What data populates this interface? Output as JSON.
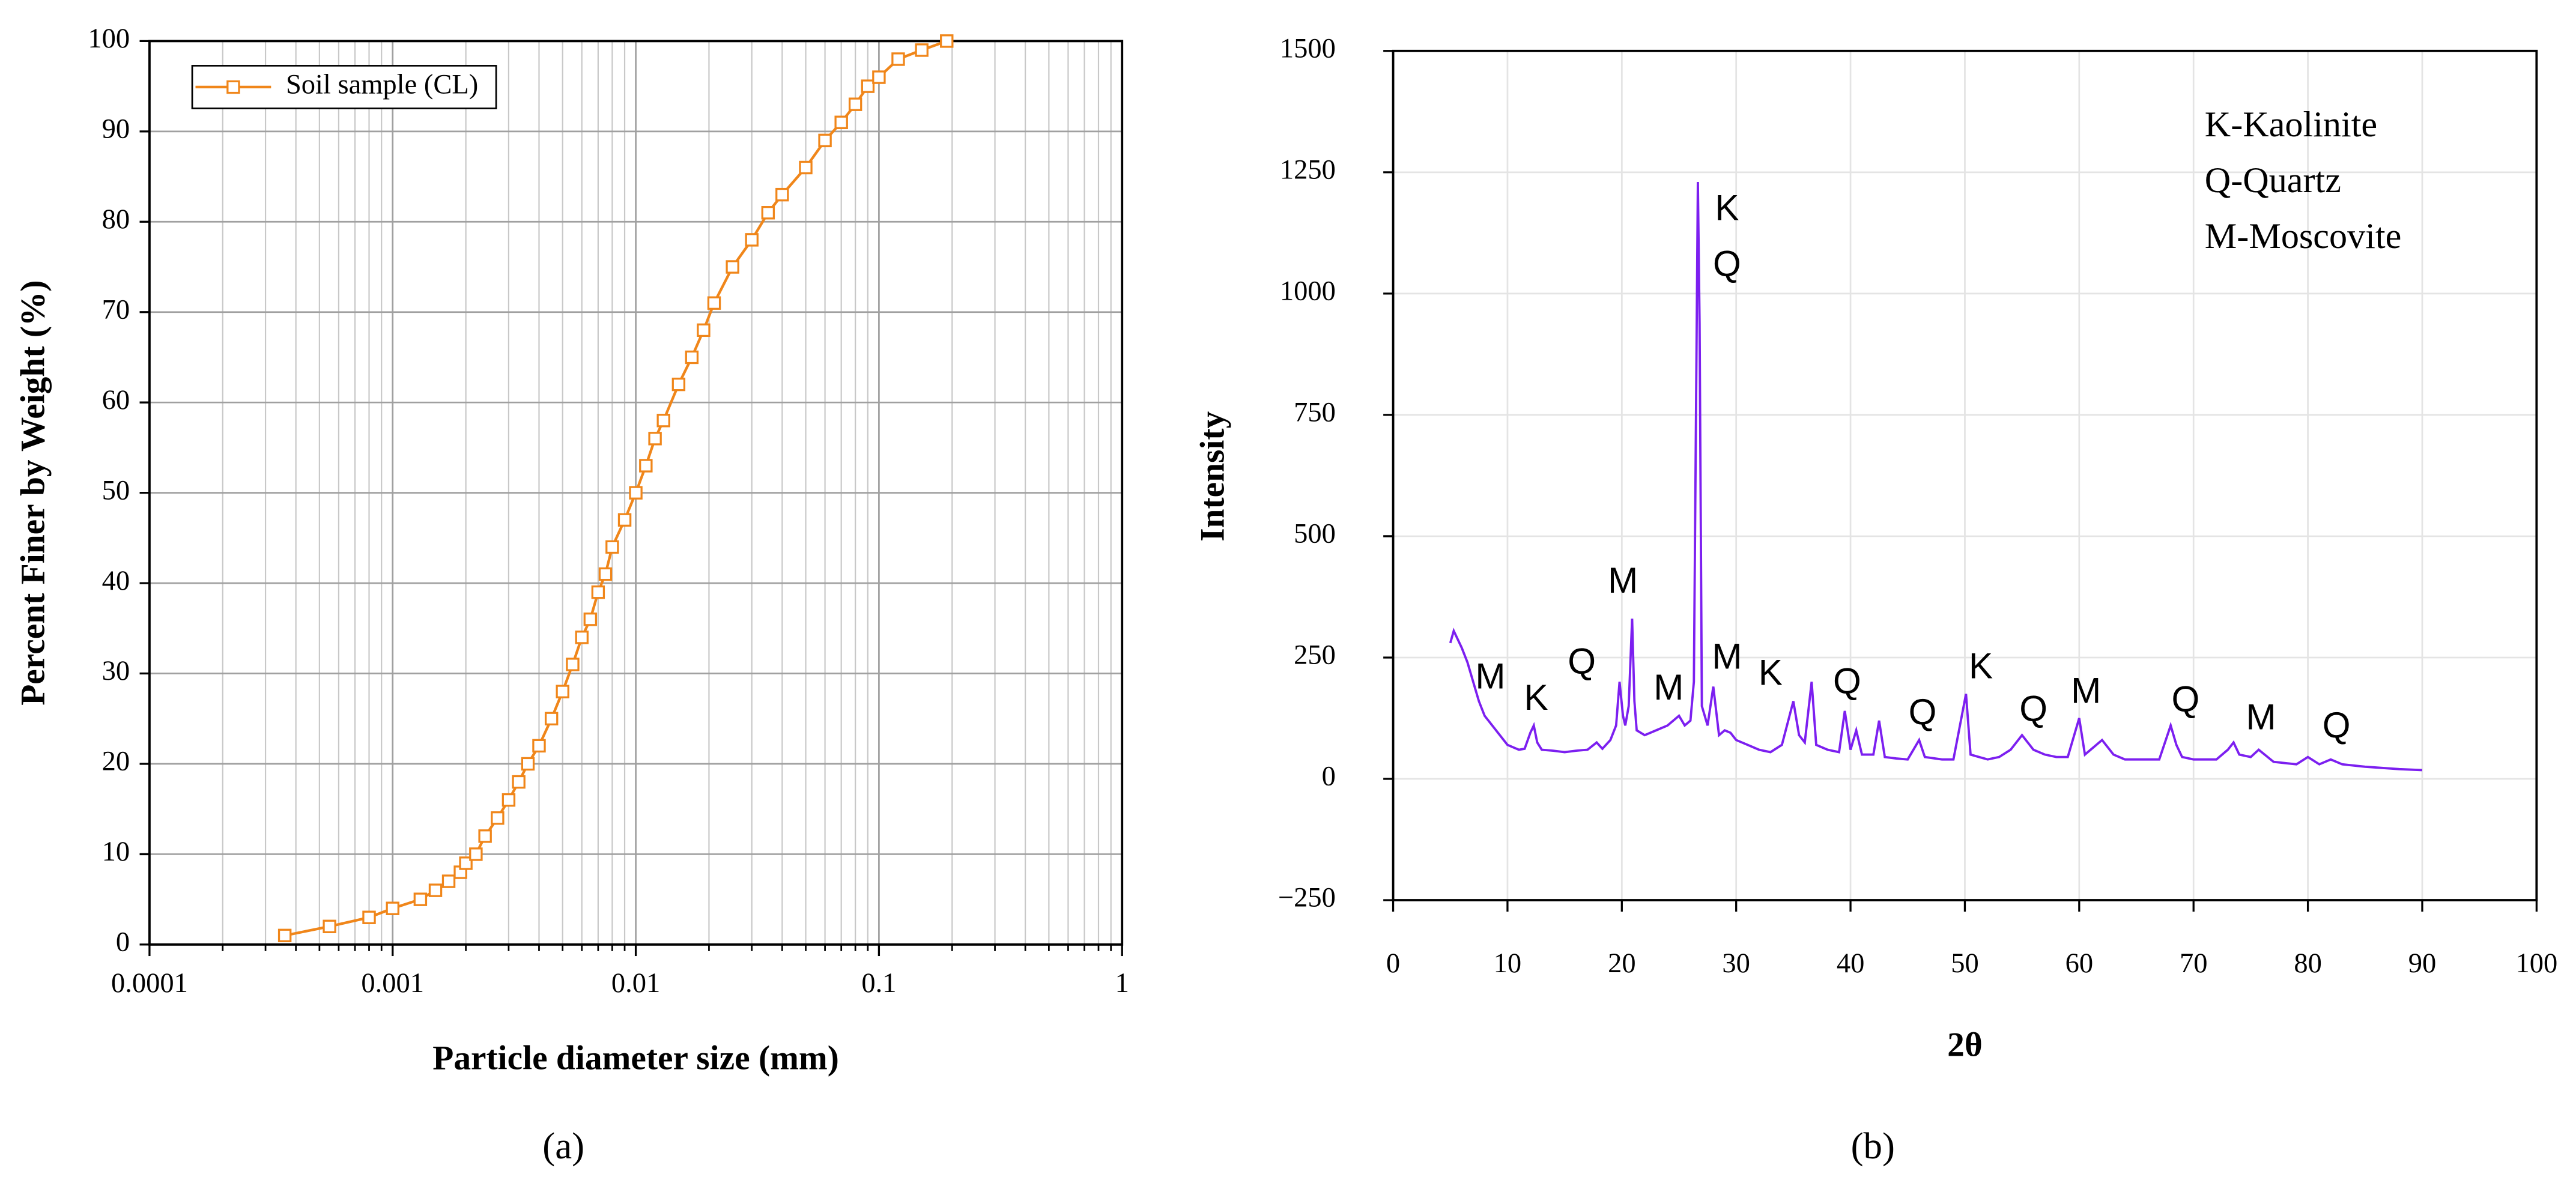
{
  "chart_data": [
    {
      "type": "line",
      "label": "(a)",
      "xscale": "log",
      "xlabel": "Particle diameter size (mm)",
      "ylabel": "Percent Finer by Weight (%)",
      "xlim": [
        0.0001,
        1
      ],
      "xticks": [
        0.0001,
        0.001,
        0.01,
        0.1,
        1
      ],
      "ylim": [
        0,
        100
      ],
      "yticks": [
        0,
        10,
        20,
        30,
        40,
        50,
        60,
        70,
        80,
        90,
        100
      ],
      "grid": true,
      "legend": "upper left",
      "x": [
        0.00036,
        0.00055,
        0.0008,
        0.001,
        0.0013,
        0.0015,
        0.0017,
        0.0019,
        0.002,
        0.0022,
        0.0024,
        0.0027,
        0.003,
        0.0033,
        0.0036,
        0.004,
        0.0045,
        0.005,
        0.0055,
        0.006,
        0.0065,
        0.007,
        0.0075,
        0.008,
        0.009,
        0.01,
        0.011,
        0.012,
        0.013,
        0.015,
        0.017,
        0.019,
        0.021,
        0.025,
        0.03,
        0.035,
        0.04,
        0.05,
        0.06,
        0.07,
        0.08,
        0.09,
        0.1,
        0.12,
        0.15,
        0.19
      ],
      "series": [
        {
          "name": "Soil sample (CL)",
          "color": "#f0861a",
          "marker": "square",
          "values": [
            1,
            2,
            3,
            4,
            5,
            6,
            7,
            8,
            9,
            10,
            12,
            14,
            16,
            18,
            20,
            22,
            25,
            28,
            31,
            34,
            36,
            39,
            41,
            44,
            47,
            50,
            53,
            56,
            58,
            62,
            65,
            68,
            71,
            75,
            78,
            81,
            83,
            86,
            89,
            91,
            93,
            95,
            96,
            98,
            99,
            100
          ]
        }
      ]
    },
    {
      "type": "line",
      "label": "(b)",
      "xlabel": "2θ",
      "ylabel": "Intensity",
      "xlim": [
        0,
        100
      ],
      "xticks": [
        0,
        10,
        20,
        30,
        40,
        50,
        60,
        70,
        80,
        90,
        100
      ],
      "ylim": [
        -250,
        1500
      ],
      "yticks": [
        {
          "value": -250,
          "label": "−250"
        },
        0,
        250,
        500,
        750,
        1000,
        1250,
        1500
      ],
      "grid": true,
      "key": [
        "K-Kaolinite",
        "Q-Quartz",
        "M-Moscovite"
      ],
      "x": [
        5,
        5.3,
        5.6,
        6,
        6.5,
        7,
        7.5,
        8,
        8.5,
        9,
        9.5,
        10,
        10.5,
        11,
        11.5,
        12,
        12.3,
        12.6,
        13,
        14,
        15,
        16,
        17,
        17.8,
        18.3,
        19,
        19.5,
        19.8,
        20.1,
        20.3,
        20.6,
        20.9,
        21.1,
        21.3,
        22,
        23,
        24,
        25,
        25.5,
        26,
        26.3,
        26.65,
        26.8,
        27,
        27.5,
        28,
        28.5,
        29,
        29.5,
        30,
        31,
        32,
        33,
        34,
        35,
        35.5,
        36,
        36.6,
        37,
        38,
        39,
        39.5,
        40,
        40.5,
        41,
        42,
        42.5,
        43,
        44,
        45,
        46,
        46.5,
        48,
        49,
        50.1,
        50.5,
        52,
        53,
        54,
        55,
        56,
        57,
        58,
        59,
        60,
        60.5,
        61,
        62,
        63,
        64,
        65,
        67,
        68,
        68.5,
        69,
        70,
        72,
        73,
        73.5,
        74,
        75,
        75.7,
        77,
        79,
        80,
        81,
        82,
        83,
        85,
        88,
        90
      ],
      "series": [
        {
          "color": "#7c1ff0",
          "values": [
            280,
            305,
            290,
            270,
            240,
            200,
            160,
            130,
            115,
            100,
            85,
            70,
            65,
            60,
            62,
            95,
            110,
            75,
            60,
            58,
            55,
            58,
            60,
            75,
            62,
            80,
            110,
            200,
            130,
            110,
            150,
            330,
            160,
            100,
            90,
            100,
            110,
            130,
            110,
            120,
            200,
            1230,
            940,
            150,
            110,
            190,
            90,
            100,
            95,
            80,
            70,
            60,
            55,
            70,
            160,
            90,
            75,
            200,
            70,
            60,
            55,
            140,
            60,
            100,
            50,
            50,
            120,
            45,
            42,
            40,
            80,
            45,
            40,
            40,
            175,
            50,
            40,
            45,
            60,
            90,
            60,
            50,
            45,
            45,
            125,
            50,
            60,
            80,
            50,
            40,
            40,
            40,
            110,
            70,
            45,
            40,
            40,
            60,
            75,
            50,
            45,
            60,
            35,
            30,
            45,
            30,
            40,
            30,
            25,
            20,
            18
          ]
        }
      ],
      "annotations": [
        {
          "text": "M",
          "x": 8.5,
          "y": 206
        },
        {
          "text": "K",
          "x": 12.5,
          "y": 162
        },
        {
          "text": "Q",
          "x": 16.5,
          "y": 237
        },
        {
          "text": "M",
          "x": 20.1,
          "y": 403
        },
        {
          "text": "M",
          "x": 24.1,
          "y": 183
        },
        {
          "text": "K",
          "x": 29.2,
          "y": 1171
        },
        {
          "text": "Q",
          "x": 29.2,
          "y": 1056
        },
        {
          "text": "M",
          "x": 29.2,
          "y": 247
        },
        {
          "text": "K",
          "x": 33,
          "y": 213
        },
        {
          "text": "Q",
          "x": 39.7,
          "y": 196
        },
        {
          "text": "Q",
          "x": 46.3,
          "y": 132
        },
        {
          "text": "K",
          "x": 51.4,
          "y": 227
        },
        {
          "text": "Q",
          "x": 56,
          "y": 139
        },
        {
          "text": "M",
          "x": 60.6,
          "y": 176
        },
        {
          "text": "Q",
          "x": 69.3,
          "y": 159
        },
        {
          "text": "M",
          "x": 75.9,
          "y": 122
        },
        {
          "text": "Q",
          "x": 82.5,
          "y": 105
        }
      ]
    }
  ]
}
